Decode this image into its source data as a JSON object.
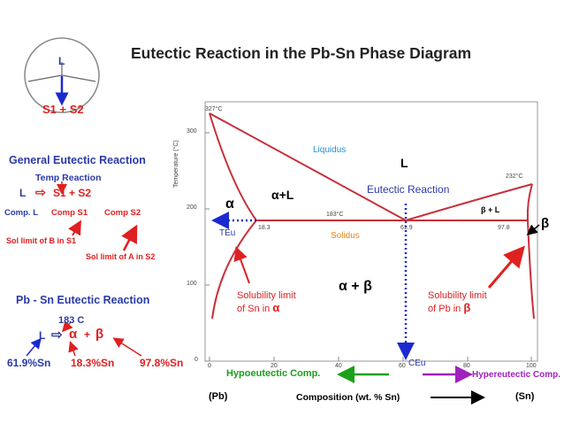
{
  "title": "Eutectic Reaction in the Pb-Sn Phase Diagram",
  "circle": {
    "top": "L",
    "bottom": "S1 + S2"
  },
  "general": {
    "heading": "General Eutectic Reaction",
    "temp_label": "Temp Reaction",
    "reaction_left": "L",
    "arrow": "⇨",
    "reaction_right": "S1  +  S2",
    "comp_l": "Comp. L",
    "comp_s1": "Comp S1",
    "comp_s2": "Comp S2",
    "sol_b": "Sol limit of B in S1",
    "sol_a": "Sol limit of A in S2"
  },
  "pbsn": {
    "heading": "Pb - Sn Eutectic Reaction",
    "temp": "183 C",
    "left": "L",
    "arrow": "⇨",
    "alpha": "α",
    "plus": "+",
    "beta": "β",
    "c1": "61.9%Sn",
    "c2": "18.3%Sn",
    "c3": "97.8%Sn"
  },
  "plot": {
    "y_axis_label": "Temperature (°C)",
    "y_ticks": [
      "300",
      "200",
      "100",
      "0"
    ],
    "x_ticks": [
      "0",
      "20",
      "40",
      "60",
      "80",
      "100"
    ],
    "t327": "327°C",
    "t232": "232°C",
    "t183": "183°C",
    "c18": "18.3",
    "c61": "61.9",
    "c97": "97.8",
    "liquidus": "Liquidus",
    "solidus": "Solidus",
    "L": "L",
    "alpha": "α",
    "alpha_L": "α+L",
    "beta_L": "β + L",
    "beta": "β",
    "alpha_beta": "α + β",
    "eutectic_reaction": "Eutectic Reaction",
    "teu": "TEu",
    "ceu": "CEu",
    "sol_sn_1": "Solubility limit",
    "sol_sn_2": "of Sn in",
    "sol_pb_1": "Solubility limit",
    "sol_pb_2": "of Pb in",
    "hypo": "Hypoeutectic Comp.",
    "hyper": "Hypereutectic Comp.",
    "pb": "(Pb)",
    "sn": "(Sn)",
    "composition": "Composition (wt. % Sn)"
  },
  "colors": {
    "curve": "#c8303a",
    "red": "#e02020",
    "blue": "#2a3aa8",
    "dotted": "#1a2ad0",
    "green": "#1aa01a",
    "purple": "#a020c0",
    "cyan": "#2090d0",
    "orange": "#e08a20"
  }
}
